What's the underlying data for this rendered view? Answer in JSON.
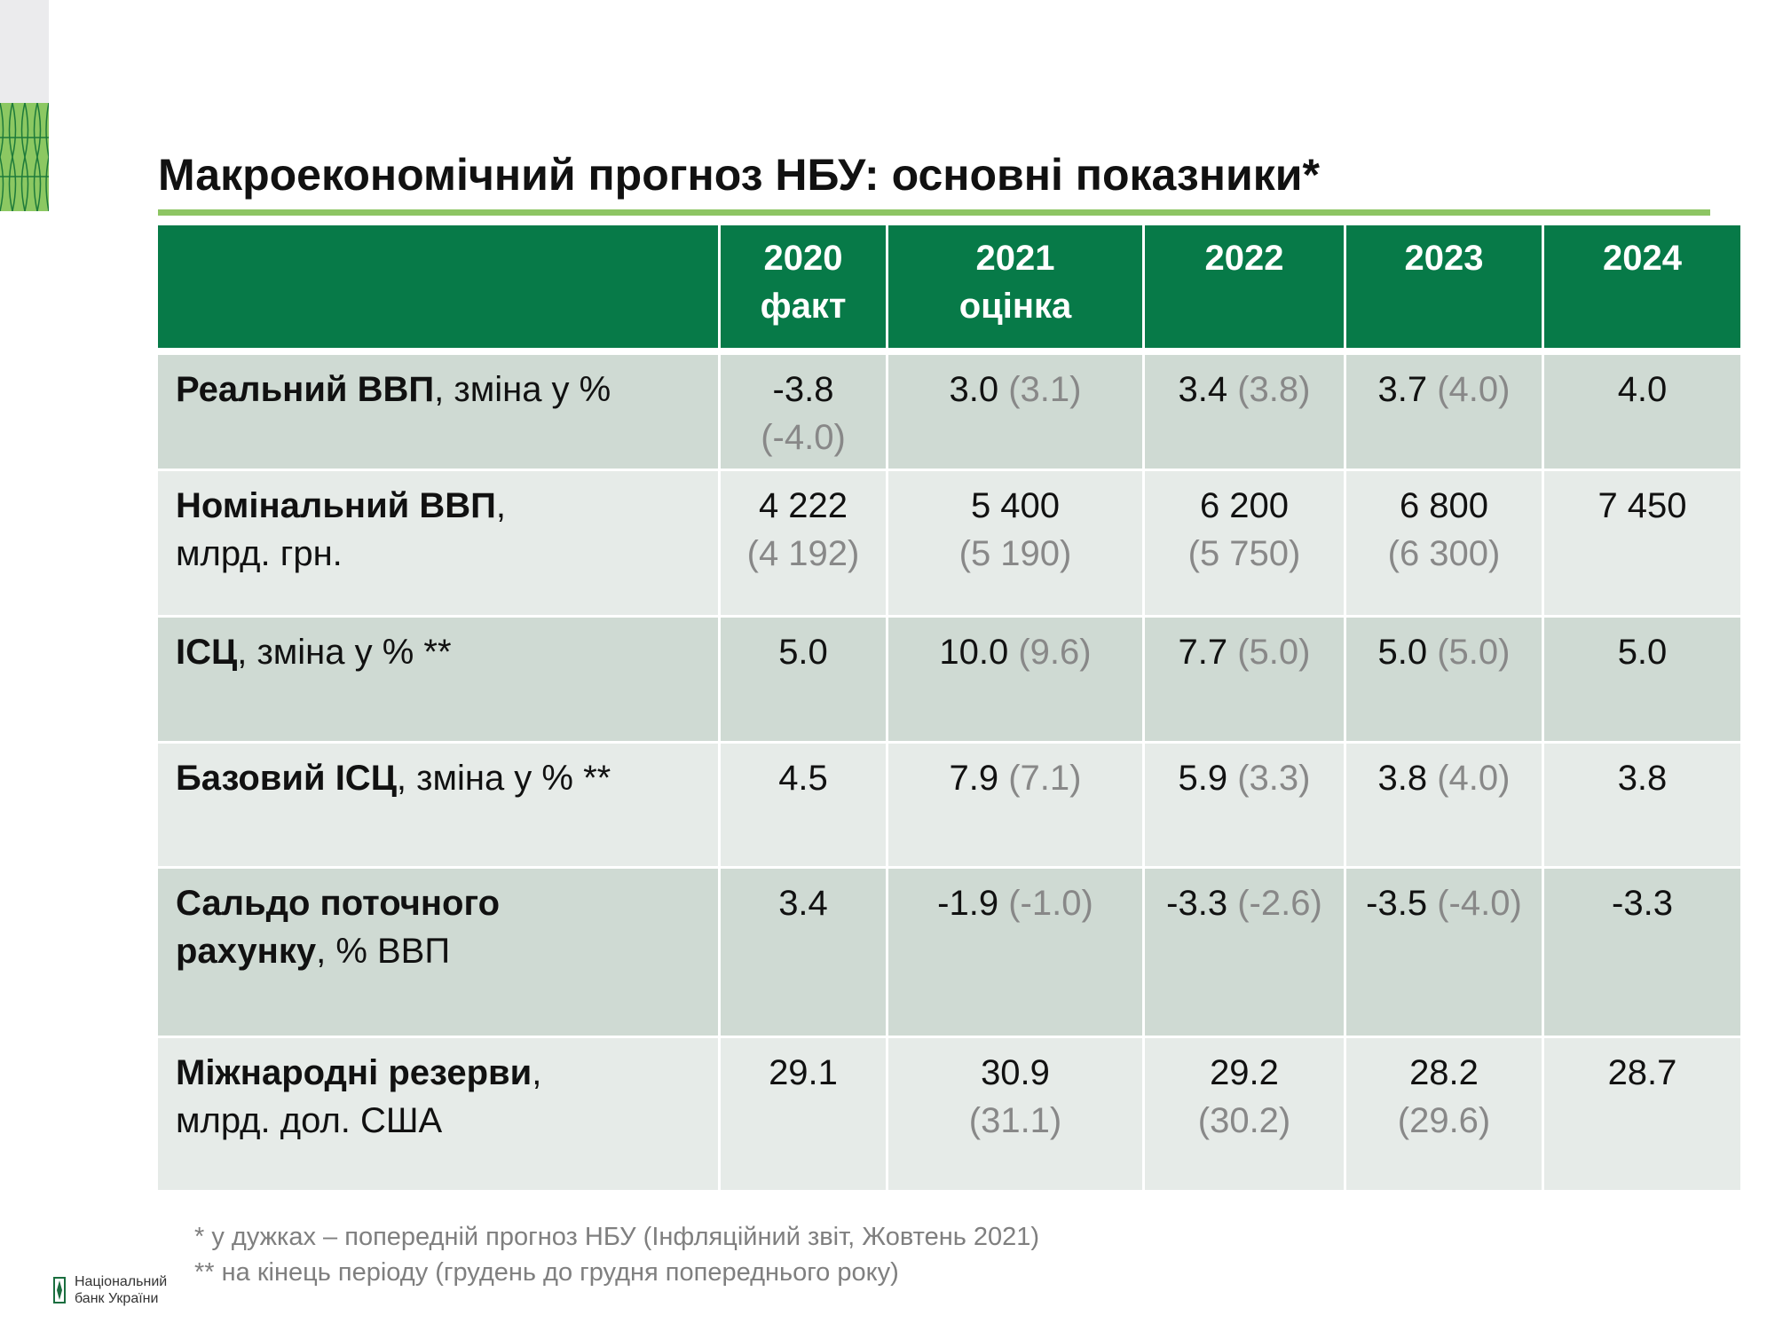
{
  "title": "Макроекономічний прогноз НБУ: основні показники*",
  "colors": {
    "header_green": "#077a48",
    "accent_light_green": "#8dc563",
    "row_dark": "#cfdad3",
    "row_light": "#e6ebe8",
    "prev_forecast_gray": "#888888"
  },
  "table": {
    "columns": [
      {
        "year": "2020",
        "note": "факт"
      },
      {
        "year": "2021",
        "note": "оцінка"
      },
      {
        "year": "2022",
        "note": ""
      },
      {
        "year": "2023",
        "note": ""
      },
      {
        "year": "2024",
        "note": ""
      }
    ],
    "rows": [
      {
        "label_bold": "Реальний ВВП",
        "label_rest": ", зміна у %",
        "label_line2_bold": "",
        "label_line2": "",
        "cells": [
          {
            "v": "-3.8",
            "p": "(-4.0)"
          },
          {
            "v": "3.0",
            "p": "(3.1)"
          },
          {
            "v": "3.4",
            "p": "(3.8)"
          },
          {
            "v": "3.7",
            "p": "(4.0)"
          },
          {
            "v": "4.0",
            "p": ""
          }
        ]
      },
      {
        "label_bold": "Номінальний ВВП",
        "label_rest": ",",
        "label_line2_bold": "",
        "label_line2": "млрд. грн.",
        "cells": [
          {
            "v": "4 222",
            "p": "(4 192)"
          },
          {
            "v": "5 400",
            "p": "(5 190)"
          },
          {
            "v": "6 200",
            "p": "(5 750)"
          },
          {
            "v": "6 800",
            "p": "(6 300)"
          },
          {
            "v": "7 450",
            "p": ""
          }
        ]
      },
      {
        "label_bold": "ІСЦ",
        "label_rest": ", зміна у % **",
        "label_line2_bold": "",
        "label_line2": "",
        "cells": [
          {
            "v": "5.0",
            "p": ""
          },
          {
            "v": "10.0",
            "p": "(9.6)"
          },
          {
            "v": "7.7",
            "p": "(5.0)"
          },
          {
            "v": "5.0",
            "p": "(5.0)"
          },
          {
            "v": "5.0",
            "p": ""
          }
        ]
      },
      {
        "label_bold": "Базовий ІСЦ",
        "label_rest": ", зміна у % **",
        "label_line2_bold": "",
        "label_line2": "",
        "cells": [
          {
            "v": "4.5",
            "p": ""
          },
          {
            "v": "7.9",
            "p": "(7.1)"
          },
          {
            "v": "5.9",
            "p": "(3.3)"
          },
          {
            "v": "3.8",
            "p": "(4.0)"
          },
          {
            "v": "3.8",
            "p": ""
          }
        ]
      },
      {
        "label_bold": "Сальдо поточного",
        "label_rest": "",
        "label_line2_bold": "рахунку",
        "label_line2": ", % ВВП",
        "cells": [
          {
            "v": "3.4",
            "p": ""
          },
          {
            "v": "-1.9",
            "p": "(-1.0)"
          },
          {
            "v": "-3.3",
            "p": "(-2.6)"
          },
          {
            "v": "-3.5",
            "p": "(-4.0)"
          },
          {
            "v": "-3.3",
            "p": ""
          }
        ]
      },
      {
        "label_bold": "Міжнародні резерви",
        "label_rest": ",",
        "label_line2_bold": "",
        "label_line2": "млрд. дол. США",
        "cells": [
          {
            "v": "29.1",
            "p": ""
          },
          {
            "v": "30.9",
            "p": "(31.1)"
          },
          {
            "v": "29.2",
            "p": "(30.2)"
          },
          {
            "v": "28.2",
            "p": "(29.6)"
          },
          {
            "v": "28.7",
            "p": ""
          }
        ]
      }
    ]
  },
  "footnotes": [
    "* у дужках – попередній прогноз НБУ (Інфляційний звіт, Жовтень 2021)",
    "** на кінець періоду (грудень до грудня попереднього року)"
  ],
  "logo": {
    "line1": "Національний",
    "line2": "банк України",
    "icon": "nbu-logo-icon"
  }
}
